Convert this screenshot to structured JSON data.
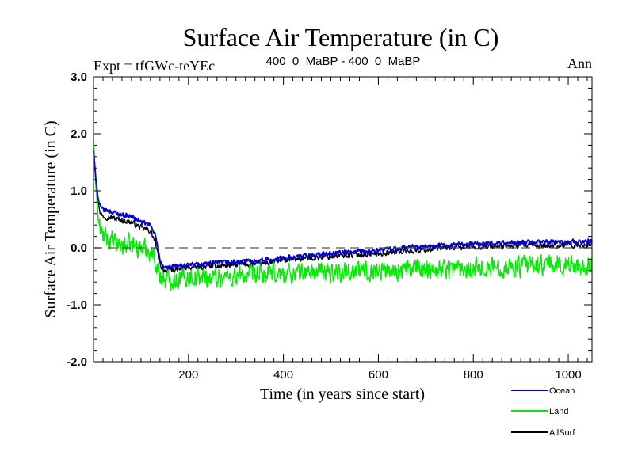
{
  "chart_data": {
    "type": "line",
    "title": "Surface Air Temperature (in C)",
    "subtitle_left": "Expt = tfGWc-teYEc",
    "subtitle_center": "400_0_MaBP - 400_0_MaBP",
    "subtitle_right": "Ann",
    "xlabel": "Time (in years since start)",
    "ylabel": "Surface Air Temperature (in C)",
    "xlim": [
      0,
      1050
    ],
    "ylim": [
      -2.0,
      3.0
    ],
    "xticks": [
      200,
      400,
      600,
      800,
      1000
    ],
    "xtick_labels": [
      "200",
      "400",
      "600",
      "800",
      "1000"
    ],
    "yticks": [
      3.0,
      2.0,
      1.0,
      0.0,
      -1.0,
      -2.0
    ],
    "ytick_labels": [
      "3.0",
      "2.0",
      "1.0",
      "0.0",
      "-1.0",
      "-2.0"
    ],
    "reference_line": 0.0,
    "legend_position": "bottom-right, outside plot",
    "series": [
      {
        "name": "AllSurf",
        "color": "#000000",
        "x": [
          0,
          5,
          10,
          15,
          20,
          30,
          50,
          80,
          100,
          120,
          130,
          140,
          150,
          175,
          200,
          250,
          300,
          350,
          400,
          450,
          500,
          550,
          600,
          650,
          700,
          750,
          800,
          850,
          900,
          950,
          1000,
          1050
        ],
        "y": [
          1.75,
          1.2,
          0.8,
          0.6,
          0.55,
          0.55,
          0.5,
          0.45,
          0.35,
          0.3,
          0.1,
          -0.3,
          -0.4,
          -0.38,
          -0.35,
          -0.32,
          -0.3,
          -0.28,
          -0.22,
          -0.18,
          -0.15,
          -0.12,
          -0.1,
          -0.06,
          -0.03,
          0.0,
          0.02,
          0.02,
          0.04,
          0.04,
          0.05,
          0.05
        ],
        "noise": 0.07
      },
      {
        "name": "Land",
        "color": "#00ee00",
        "x": [
          0,
          5,
          10,
          15,
          20,
          30,
          50,
          80,
          100,
          120,
          130,
          140,
          150,
          175,
          200,
          250,
          300,
          350,
          400,
          450,
          500,
          550,
          600,
          650,
          700,
          750,
          800,
          850,
          900,
          950,
          1000,
          1050
        ],
        "y": [
          1.9,
          1.1,
          0.5,
          0.3,
          0.2,
          0.15,
          0.05,
          0.05,
          0.0,
          -0.05,
          -0.2,
          -0.5,
          -0.55,
          -0.55,
          -0.5,
          -0.52,
          -0.5,
          -0.48,
          -0.45,
          -0.42,
          -0.42,
          -0.4,
          -0.4,
          -0.38,
          -0.36,
          -0.35,
          -0.34,
          -0.34,
          -0.32,
          -0.3,
          -0.3,
          -0.3
        ],
        "noise": 0.24
      },
      {
        "name": "Ocean",
        "color": "#0000dd",
        "x": [
          0,
          5,
          10,
          15,
          20,
          30,
          50,
          80,
          100,
          120,
          130,
          140,
          150,
          175,
          200,
          250,
          300,
          350,
          400,
          450,
          500,
          550,
          600,
          650,
          700,
          750,
          800,
          850,
          900,
          950,
          1000,
          1050
        ],
        "y": [
          1.7,
          1.2,
          0.85,
          0.7,
          0.67,
          0.65,
          0.6,
          0.55,
          0.45,
          0.4,
          0.25,
          -0.25,
          -0.35,
          -0.32,
          -0.3,
          -0.27,
          -0.25,
          -0.22,
          -0.18,
          -0.14,
          -0.1,
          -0.07,
          -0.05,
          0.0,
          0.02,
          0.05,
          0.07,
          0.08,
          0.09,
          0.1,
          0.1,
          0.12
        ],
        "noise": 0.055
      }
    ],
    "legend": [
      {
        "label": "Ocean",
        "color": "#0000dd"
      },
      {
        "label": "Land",
        "color": "#00ee00"
      },
      {
        "label": "AllSurf",
        "color": "#000000"
      }
    ]
  }
}
